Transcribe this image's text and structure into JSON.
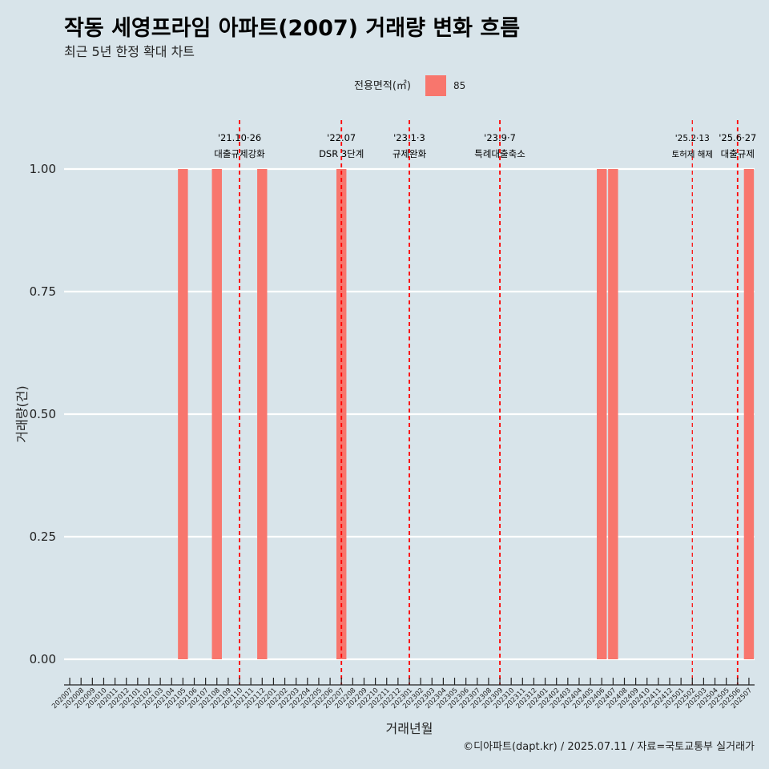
{
  "chart_data": {
    "type": "bar",
    "title": "작동 세영프라임 아파트(2007) 거래량 변화 흐름",
    "subtitle": "최근 5년 한정 확대 차트",
    "xlabel": "거래년월",
    "ylabel": "거래량(건)",
    "ylim": [
      0,
      1
    ],
    "yticks": [
      "0.00",
      "0.25",
      "0.50",
      "0.75",
      "1.00"
    ],
    "grid": "horizontal",
    "legend": {
      "title": "전용면적(㎡)",
      "position": "top",
      "entries": [
        {
          "label": "85",
          "color": "#f8766d"
        }
      ]
    },
    "categories": [
      "202007",
      "202008",
      "202009",
      "202010",
      "202011",
      "202012",
      "202101",
      "202102",
      "202103",
      "202104",
      "202105",
      "202106",
      "202107",
      "202108",
      "202109",
      "202110",
      "202111",
      "202112",
      "202201",
      "202202",
      "202203",
      "202204",
      "202205",
      "202206",
      "202207",
      "202208",
      "202209",
      "202210",
      "202211",
      "202212",
      "202301",
      "202302",
      "202303",
      "202304",
      "202305",
      "202306",
      "202307",
      "202308",
      "202309",
      "202310",
      "202311",
      "202312",
      "202401",
      "202402",
      "202403",
      "202404",
      "202405",
      "202406",
      "202407",
      "202408",
      "202409",
      "202410",
      "202411",
      "202412",
      "202501",
      "202502",
      "202503",
      "202504",
      "202505",
      "202506",
      "202507"
    ],
    "series": [
      {
        "name": "85",
        "color": "#f8766d",
        "points": [
          {
            "x": "202105",
            "y": 1
          },
          {
            "x": "202108",
            "y": 1
          },
          {
            "x": "202112",
            "y": 1
          },
          {
            "x": "202207",
            "y": 1
          },
          {
            "x": "202406",
            "y": 1
          },
          {
            "x": "202407",
            "y": 1
          },
          {
            "x": "202507",
            "y": 1
          }
        ]
      }
    ],
    "annotations": [
      {
        "x": "202110",
        "line1": "'21.10·26",
        "line2": "대출규제강화",
        "style": "normal"
      },
      {
        "x": "202207",
        "line1": "'22.07",
        "line2": "DSR 3단계",
        "style": "normal"
      },
      {
        "x": "202301",
        "line1": "'23.1·3",
        "line2": "규제완화",
        "style": "normal"
      },
      {
        "x": "202309",
        "line1": "'23.9·7",
        "line2": "특례대출축소",
        "style": "normal"
      },
      {
        "x": "202502",
        "line1": "'25.2·13",
        "line2": "토허제 해제",
        "style": "small"
      },
      {
        "x": "202506",
        "line1": "'25.6·27",
        "line2": "대출규제",
        "style": "normal"
      }
    ],
    "reference_line_color": "#ff0000"
  },
  "caption": "©디아파트(dapt.kr) / 2025.07.11 / 자료=국토교통부 실거래가"
}
